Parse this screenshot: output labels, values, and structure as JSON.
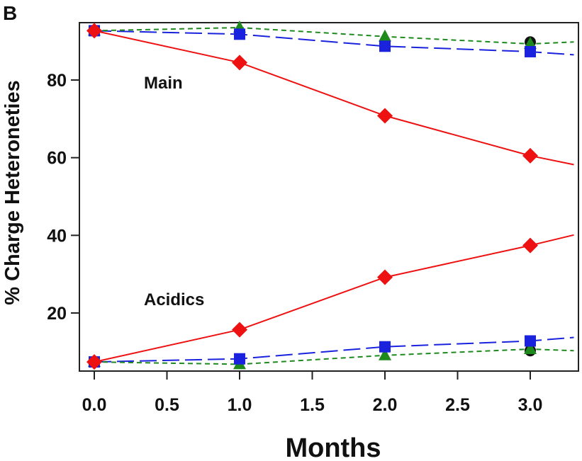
{
  "chart_data": {
    "type": "line",
    "panel_label": "B",
    "title": "",
    "xlabel": "Months",
    "ylabel": "% Charge Heteroneties",
    "xlim": [
      -0.1,
      3.3
    ],
    "ylim": [
      5,
      95
    ],
    "x_ticks": [
      0.0,
      0.5,
      1.0,
      1.5,
      2.0,
      2.5,
      3.0
    ],
    "x_tick_labels": [
      "0.0",
      "0.5",
      "1.0",
      "1.5",
      "2.0",
      "2.5",
      "3.0"
    ],
    "y_ticks": [
      20,
      40,
      60,
      80
    ],
    "y_tick_labels": [
      "20",
      "40",
      "60",
      "80"
    ],
    "grid": false,
    "annotations": [
      {
        "text": "Main",
        "x": 0.55,
        "y": 82
      },
      {
        "text": "Acidics",
        "x": 0.5,
        "y": 23
      }
    ],
    "series": [
      {
        "name": "red-main",
        "color": "#ee1111",
        "dash": "solid",
        "marker": "diamond",
        "x": [
          0,
          1,
          2,
          3,
          3.3
        ],
        "y": [
          92.7,
          84.5,
          70.8,
          60.5,
          58.2
        ],
        "marker_count": 4
      },
      {
        "name": "blue-main",
        "color": "#1a22dd",
        "dash": "long",
        "marker": "square",
        "x": [
          0,
          1,
          2,
          3,
          3.3
        ],
        "y": [
          92.7,
          91.8,
          88.7,
          87.3,
          86.5
        ],
        "marker_count": 4
      },
      {
        "name": "green-main",
        "color": "#1e8a1e",
        "dash": "short",
        "marker": "triangle",
        "x": [
          0,
          1,
          2,
          3,
          3.3
        ],
        "y": [
          92.7,
          93.5,
          91.2,
          89.3,
          89.8
        ],
        "marker_count": 4
      },
      {
        "name": "black-main",
        "color": "#111111",
        "dash": "none",
        "marker": "circle",
        "x": [
          3
        ],
        "y": [
          89.8
        ],
        "marker_count": 1
      },
      {
        "name": "red-acidic",
        "color": "#ee1111",
        "dash": "solid",
        "marker": "diamond",
        "x": [
          0,
          1,
          2,
          3,
          3.3
        ],
        "y": [
          7.4,
          15.7,
          29.2,
          37.4,
          40.1
        ],
        "marker_count": 4
      },
      {
        "name": "blue-acidic",
        "color": "#1a22dd",
        "dash": "long",
        "marker": "square",
        "x": [
          0,
          1,
          2,
          3,
          3.3
        ],
        "y": [
          7.4,
          8.2,
          11.3,
          12.8,
          13.7
        ],
        "marker_count": 4
      },
      {
        "name": "green-acidic",
        "color": "#1e8a1e",
        "dash": "short",
        "marker": "triangle",
        "x": [
          0,
          1,
          2,
          3,
          3.3
        ],
        "y": [
          7.4,
          6.8,
          9.1,
          10.7,
          10.3
        ],
        "marker_count": 4
      },
      {
        "name": "black-acidic",
        "color": "#111111",
        "dash": "none",
        "marker": "circle",
        "x": [
          3
        ],
        "y": [
          10.3
        ],
        "marker_count": 1
      }
    ]
  }
}
